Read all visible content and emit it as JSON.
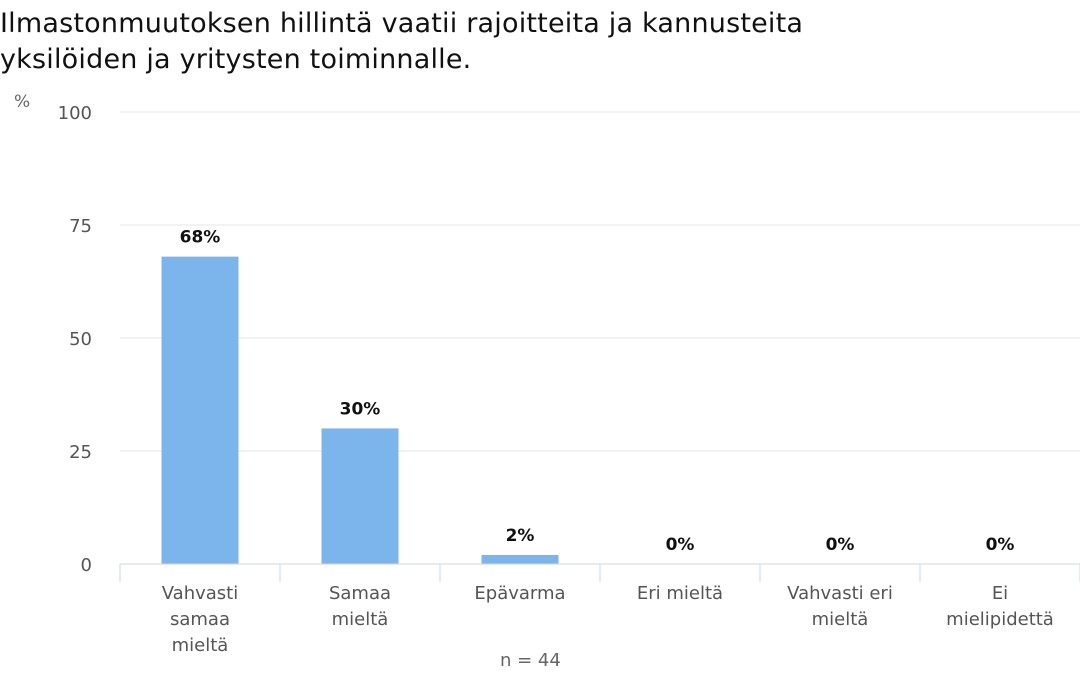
{
  "title_lines": [
    "Ilmastonmuutoksen hillintä vaatii rajoitteita ja kannusteita",
    "yksilöiden ja yritysten toiminnalle."
  ],
  "note": "n = 44",
  "colors": {
    "bar": "#7cb5ec",
    "grid": "#e6e6e6",
    "axis": "#ccd6eb"
  },
  "chart_data": {
    "type": "bar",
    "title": "Ilmastonmuutoksen hillintä vaatii rajoitteita ja kannusteita yksilöiden ja yritysten toiminnalle.",
    "ylabel": "%",
    "xlabel": "",
    "ylim": [
      0,
      100
    ],
    "yticks": [
      0,
      25,
      50,
      75,
      100
    ],
    "grid": true,
    "categories": [
      [
        "Vahvasti",
        "samaa",
        "mieltä"
      ],
      [
        "Samaa",
        "mieltä"
      ],
      [
        "Epävarma"
      ],
      [
        "Eri mieltä"
      ],
      [
        "Vahvasti eri",
        "mieltä"
      ],
      [
        "Ei",
        "mielipidettä"
      ]
    ],
    "values": [
      68,
      30,
      2,
      0,
      0,
      0
    ],
    "data_labels": [
      "68%",
      "30%",
      "2%",
      "0%",
      "0%",
      "0%"
    ]
  }
}
